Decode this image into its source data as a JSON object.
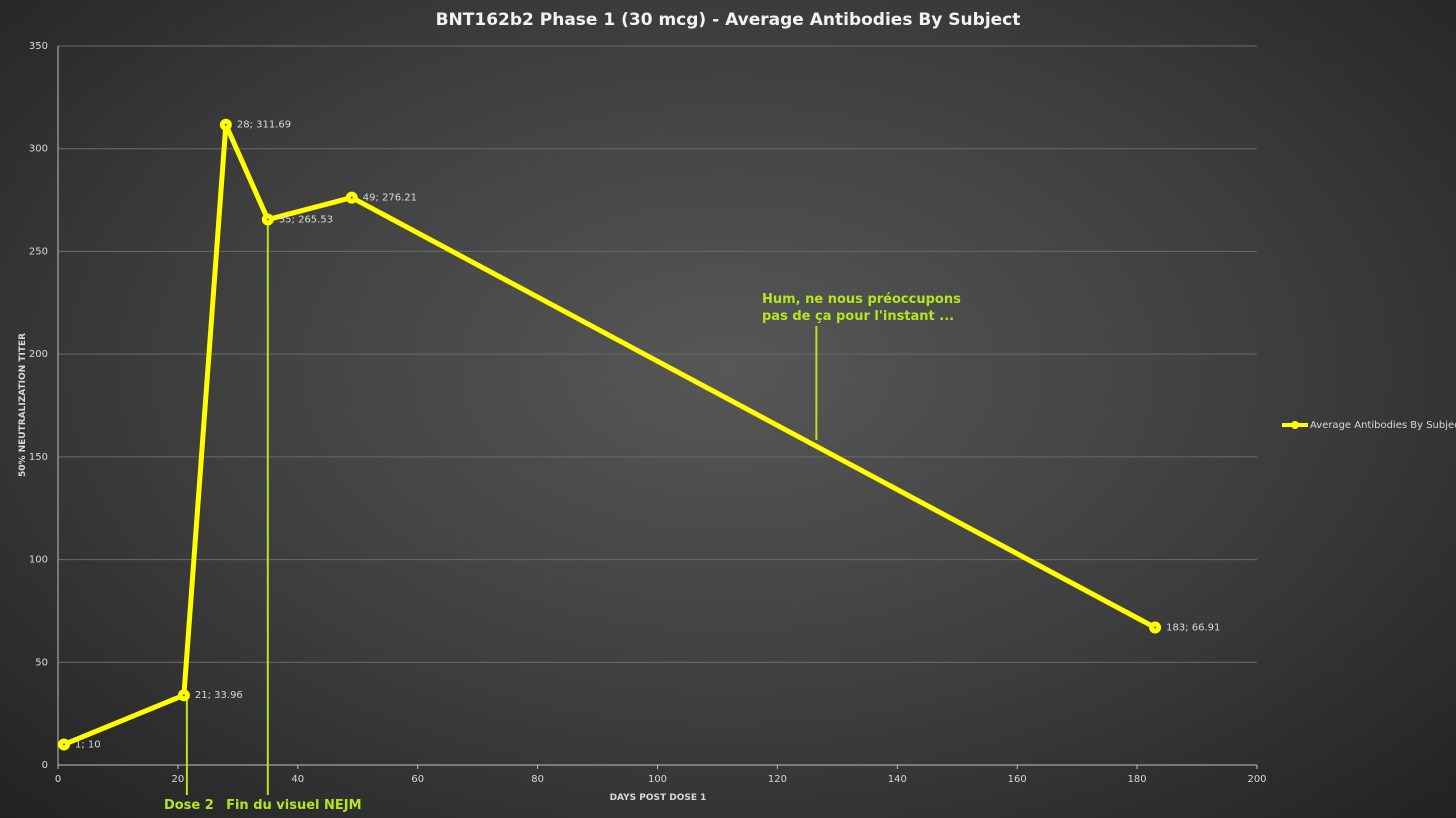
{
  "chart_data": {
    "type": "line",
    "title": "BNT162b2 Phase 1 (30 mcg) - Average Antibodies By Subject",
    "xlabel": "DAYS POST DOSE 1",
    "ylabel": "50% NEUTRALIZATION TITER",
    "xlim": [
      0,
      200
    ],
    "ylim": [
      0,
      350
    ],
    "xticks": [
      0,
      20,
      40,
      60,
      80,
      100,
      120,
      140,
      160,
      180,
      200
    ],
    "yticks": [
      0,
      50,
      100,
      150,
      200,
      250,
      300,
      350
    ],
    "grid": "horizontal",
    "legend_position": "right",
    "series": [
      {
        "name": "Average Antibodies By Subject",
        "color": "#ffff00",
        "x": [
          1,
          21,
          28,
          35,
          49,
          183
        ],
        "y": [
          10,
          33.96,
          311.69,
          265.53,
          276.21,
          66.91
        ],
        "labels": [
          "1; 10",
          "21; 33.96",
          "28; 311.69",
          "35; 265.53",
          "49; 276.21",
          "183; 66.91"
        ]
      }
    ],
    "annotations": [
      {
        "text": "Dose 2",
        "x": 21.5,
        "color": "#b5e61d"
      },
      {
        "text": "Fin du visuel NEJM",
        "x": 35,
        "color": "#b5e61d"
      },
      {
        "lines": [
          "Hum, ne nous préoccupons",
          "pas de ça pour l'instant ..."
        ],
        "x": 126.5,
        "color": "#b5e61d"
      }
    ]
  }
}
